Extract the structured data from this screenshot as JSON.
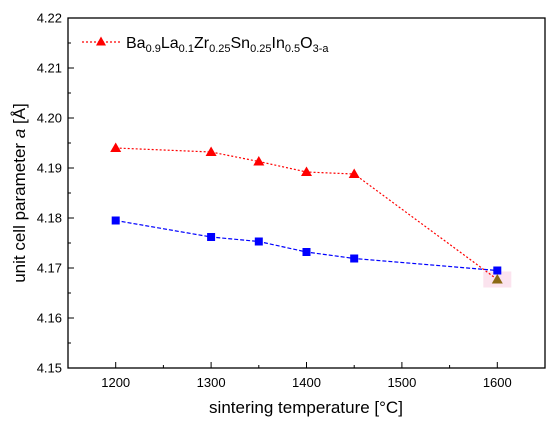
{
  "chart_data": {
    "type": "line",
    "xlabel": "sintering temperature [°C]",
    "ylabel_prefix": "unit cell parameter ",
    "ylabel_var": "a",
    "ylabel_suffix": " [Å]",
    "xlim": [
      1150,
      1650
    ],
    "ylim": [
      4.15,
      4.22
    ],
    "x_ticks": [
      1200,
      1300,
      1400,
      1500,
      1600
    ],
    "y_ticks": [
      "4.15",
      "4.16",
      "4.17",
      "4.18",
      "4.19",
      "4.20",
      "4.21",
      "4.22"
    ],
    "grid": false,
    "legend_position": "top-left",
    "legend_parts": [
      {
        "text": "Ba",
        "sub": "0.9"
      },
      {
        "text": "La",
        "sub": "0.1"
      },
      {
        "text": "Zr",
        "sub": "0.25"
      },
      {
        "text": "Sn",
        "sub": "0.25"
      },
      {
        "text": "In",
        "sub": "0.5"
      },
      {
        "text": "O",
        "sub": "3-a"
      }
    ],
    "series": [
      {
        "marker": "triangle",
        "line_style": "dotted",
        "color": "#ff0000",
        "x": [
          1200,
          1300,
          1350,
          1400,
          1450,
          1600
        ],
        "y": [
          4.194,
          4.1932,
          4.1913,
          4.1892,
          4.1888,
          4.1677
        ]
      },
      {
        "marker": "square",
        "line_style": "dashed",
        "color": "#0000ff",
        "x": [
          1200,
          1300,
          1350,
          1400,
          1450,
          1600
        ],
        "y": [
          4.1795,
          4.1762,
          4.1753,
          4.1732,
          4.1719,
          4.1695
        ]
      }
    ],
    "highlight_marker_color": "#8b6914",
    "highlight_bg_color": "#fbe3ee"
  }
}
